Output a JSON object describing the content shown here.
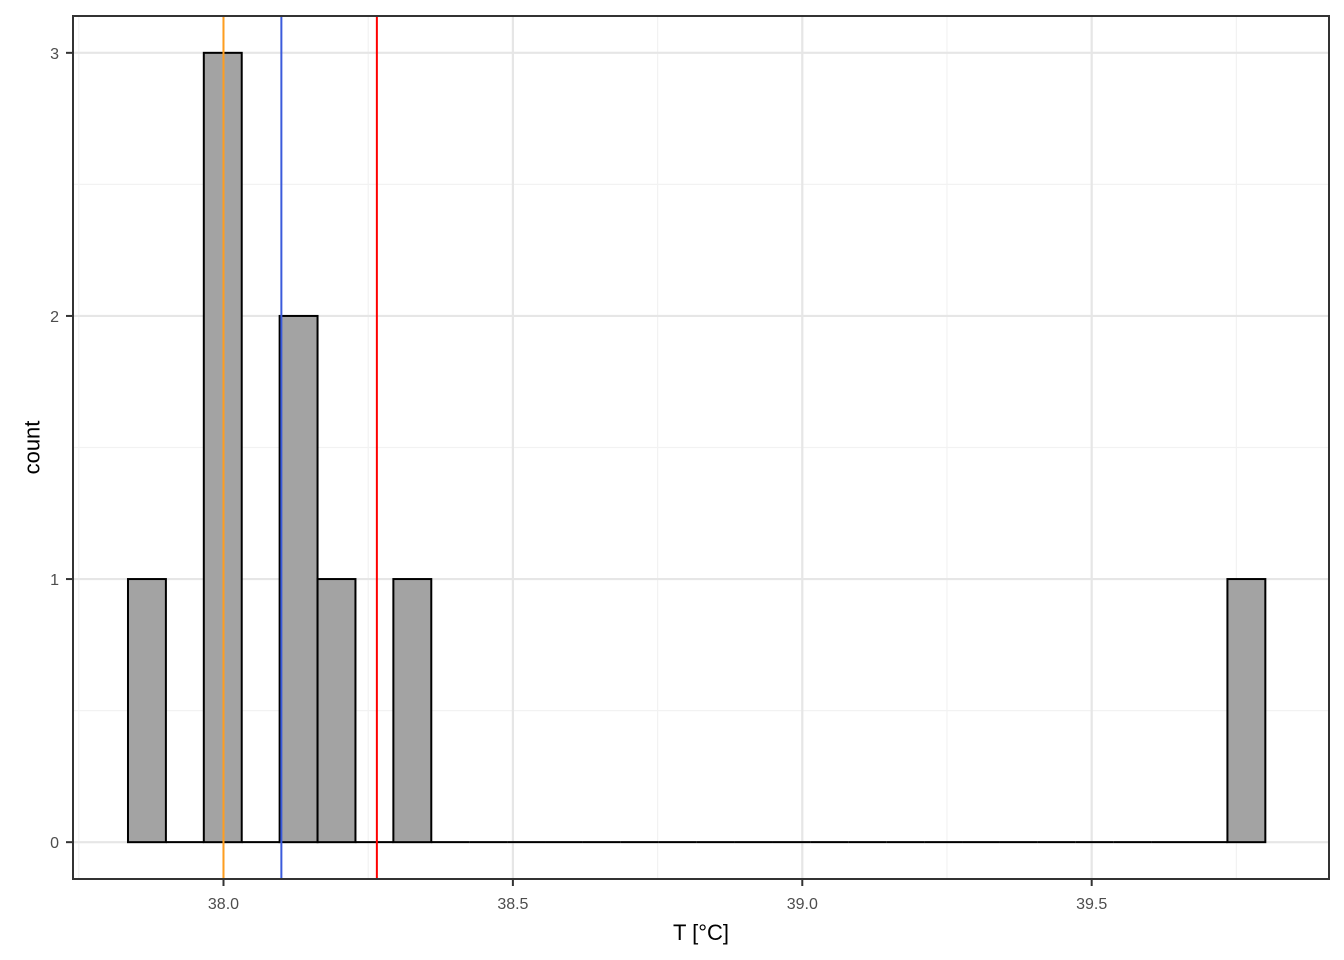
{
  "chart_data": {
    "type": "bar",
    "subtype": "histogram",
    "title": "",
    "xlabel": "T [°C]",
    "ylabel": "count",
    "xlim": [
      37.74,
      39.91
    ],
    "ylim": [
      -0.14,
      3.14
    ],
    "x_ticks": [
      38.0,
      38.5,
      39.0,
      39.5
    ],
    "x_tick_labels": [
      "38.0",
      "38.5",
      "39.0",
      "39.5"
    ],
    "y_ticks": [
      0,
      1,
      2,
      3
    ],
    "y_tick_labels": [
      "0",
      "1",
      "2",
      "3"
    ],
    "bin_width": 0.0655,
    "bins": [
      {
        "x0": 37.835,
        "x1": 37.9005,
        "count": 1
      },
      {
        "x0": 37.9005,
        "x1": 37.966,
        "count": 0
      },
      {
        "x0": 37.966,
        "x1": 38.0315,
        "count": 3
      },
      {
        "x0": 38.0315,
        "x1": 38.097,
        "count": 0
      },
      {
        "x0": 38.097,
        "x1": 38.1625,
        "count": 2
      },
      {
        "x0": 38.1625,
        "x1": 38.228,
        "count": 1
      },
      {
        "x0": 38.228,
        "x1": 38.2935,
        "count": 0
      },
      {
        "x0": 38.2935,
        "x1": 38.359,
        "count": 1
      },
      {
        "x0": 38.359,
        "x1": 38.4245,
        "count": 0
      },
      {
        "x0": 38.4245,
        "x1": 38.49,
        "count": 0
      },
      {
        "x0": 38.49,
        "x1": 38.5555,
        "count": 0
      },
      {
        "x0": 38.5555,
        "x1": 38.621,
        "count": 0
      },
      {
        "x0": 38.621,
        "x1": 38.6865,
        "count": 0
      },
      {
        "x0": 38.6865,
        "x1": 38.752,
        "count": 0
      },
      {
        "x0": 38.752,
        "x1": 38.8175,
        "count": 0
      },
      {
        "x0": 38.8175,
        "x1": 38.883,
        "count": 0
      },
      {
        "x0": 38.883,
        "x1": 38.9485,
        "count": 0
      },
      {
        "x0": 38.9485,
        "x1": 39.014,
        "count": 0
      },
      {
        "x0": 39.014,
        "x1": 39.0795,
        "count": 0
      },
      {
        "x0": 39.0795,
        "x1": 39.145,
        "count": 0
      },
      {
        "x0": 39.145,
        "x1": 39.2105,
        "count": 0
      },
      {
        "x0": 39.2105,
        "x1": 39.276,
        "count": 0
      },
      {
        "x0": 39.276,
        "x1": 39.3415,
        "count": 0
      },
      {
        "x0": 39.3415,
        "x1": 39.407,
        "count": 0
      },
      {
        "x0": 39.407,
        "x1": 39.4725,
        "count": 0
      },
      {
        "x0": 39.4725,
        "x1": 39.538,
        "count": 0
      },
      {
        "x0": 39.538,
        "x1": 39.6035,
        "count": 0
      },
      {
        "x0": 39.6035,
        "x1": 39.669,
        "count": 0
      },
      {
        "x0": 39.669,
        "x1": 39.7345,
        "count": 0
      },
      {
        "x0": 39.7345,
        "x1": 39.8,
        "count": 1
      }
    ],
    "vlines": [
      {
        "x": 38.0,
        "color": "#ff9e1f"
      },
      {
        "x": 38.1,
        "color": "#3b5bdb"
      },
      {
        "x": 38.265,
        "color": "#ff0000"
      }
    ],
    "grid": true,
    "colors": {
      "bar_fill": "#a3a3a3",
      "bar_stroke": "#000000",
      "grid_major": "#e6e6e6",
      "grid_minor": "#f2f2f2",
      "panel_border": "#333333",
      "background": "#ffffff"
    }
  }
}
